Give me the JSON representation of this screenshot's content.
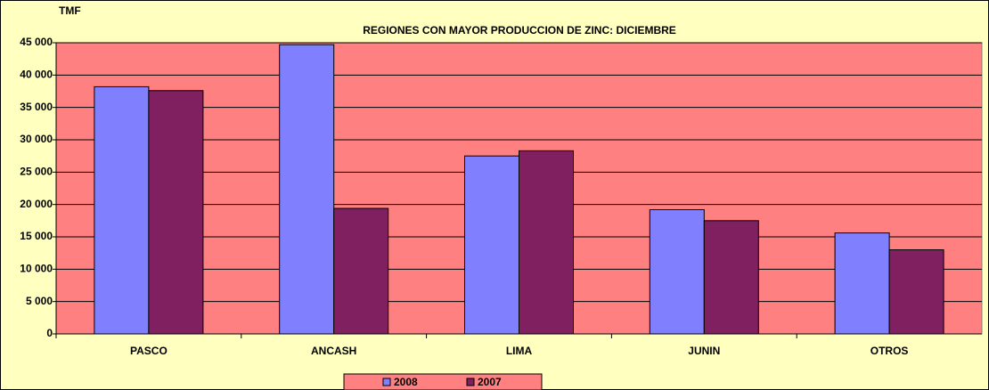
{
  "chart_data": {
    "type": "bar",
    "title": "REGIONES CON MAYOR PRODUCCION DE ZINC: DICIEMBRE",
    "y_label": "TMF",
    "categories": [
      "PASCO",
      "ANCASH",
      "LIMA",
      "JUNIN",
      "OTROS"
    ],
    "series": [
      {
        "name": "2008",
        "color": "#8080ff",
        "values": [
          38200,
          44700,
          27500,
          19200,
          15600
        ]
      },
      {
        "name": "2007",
        "color": "#802060",
        "values": [
          37600,
          19400,
          28300,
          17500,
          13000
        ]
      }
    ],
    "ylim": [
      0,
      45000
    ],
    "yticks": [
      0,
      {
        "value": 5000,
        "label": "5 000"
      },
      {
        "value": 10000,
        "label": "10 000"
      },
      {
        "value": 15000,
        "label": "15 000"
      },
      {
        "value": 20000,
        "label": "20 000"
      },
      {
        "value": 25000,
        "label": "25 000"
      },
      {
        "value": 30000,
        "label": "30 000"
      },
      {
        "value": 35000,
        "label": "35 000"
      },
      {
        "value": 40000,
        "label": "40 000"
      },
      {
        "value": 45000,
        "label": "45 000"
      }
    ],
    "grid": true,
    "legend": "bottom",
    "plot_background": "#ff8080",
    "background": "#ffffc0"
  }
}
